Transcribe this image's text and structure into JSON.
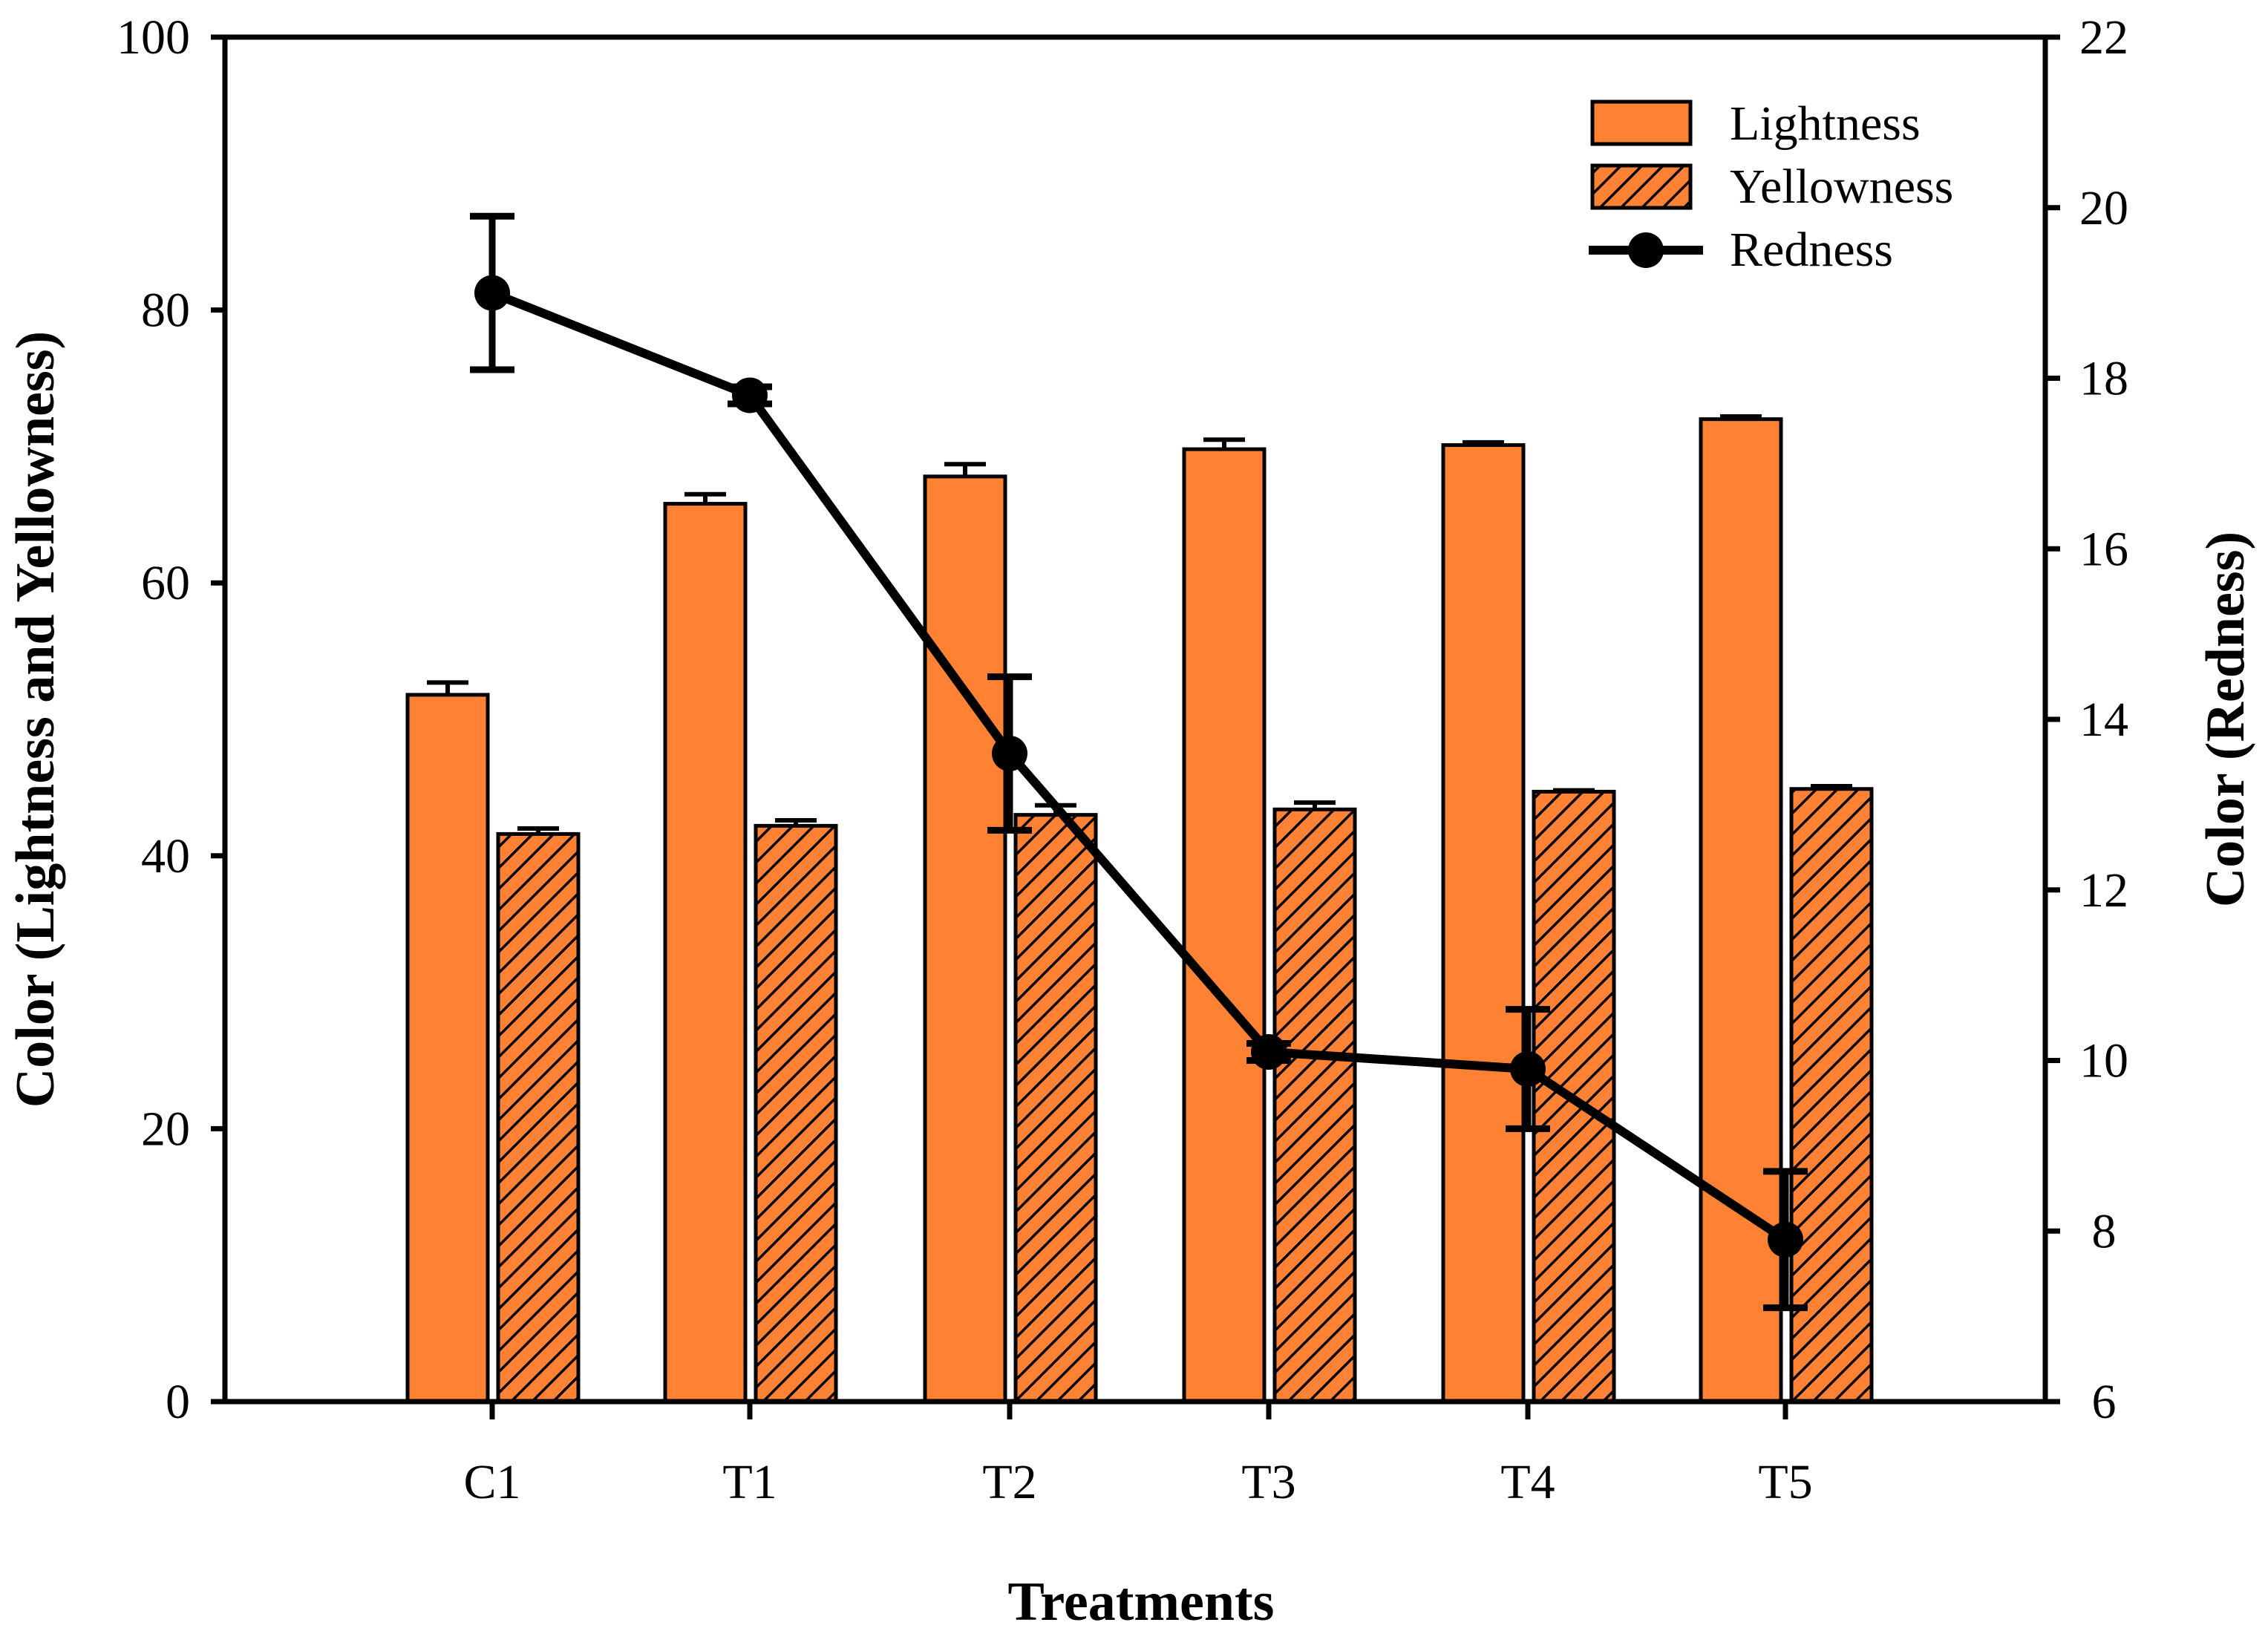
{
  "chart_data": {
    "type": "bar",
    "categories": [
      "C1",
      "T1",
      "T2",
      "T3",
      "T4",
      "T5"
    ],
    "xlabel": "Treatments",
    "ylabel_left": "Color  (Lightness and Yellowness)",
    "ylabel_right": "Color  (Redness)",
    "ylim_left": [
      0,
      100
    ],
    "yticks_left": [
      "0",
      "20",
      "40",
      "60",
      "80",
      "100"
    ],
    "ylim_right": [
      6,
      22
    ],
    "yticks_right": [
      "6",
      "8",
      "10",
      "12",
      "14",
      "16",
      "18",
      "20",
      "22"
    ],
    "grid": false,
    "legend_position": "top-right",
    "series": [
      {
        "name": "Lightness",
        "kind": "bar",
        "axis": "left",
        "pattern": "solid",
        "color": "#FF8234",
        "values": [
          51.8,
          65.8,
          67.8,
          69.8,
          70.1,
          72.0
        ],
        "errors": [
          0.9,
          0.7,
          0.9,
          0.7,
          0.2,
          0.2
        ]
      },
      {
        "name": "Yellowness",
        "kind": "bar",
        "axis": "left",
        "pattern": "hatched",
        "color": "#FF8234",
        "values": [
          41.6,
          42.2,
          43.0,
          43.4,
          44.7,
          44.9
        ],
        "errors": [
          0.4,
          0.4,
          0.7,
          0.5,
          0.1,
          0.2
        ]
      },
      {
        "name": "Redness",
        "kind": "line",
        "axis": "right",
        "color": "#000000",
        "values": [
          19.0,
          17.8,
          13.6,
          10.1,
          9.9,
          7.9
        ],
        "errors": [
          0.9,
          0.1,
          0.9,
          0.1,
          0.7,
          0.8
        ]
      }
    ]
  }
}
